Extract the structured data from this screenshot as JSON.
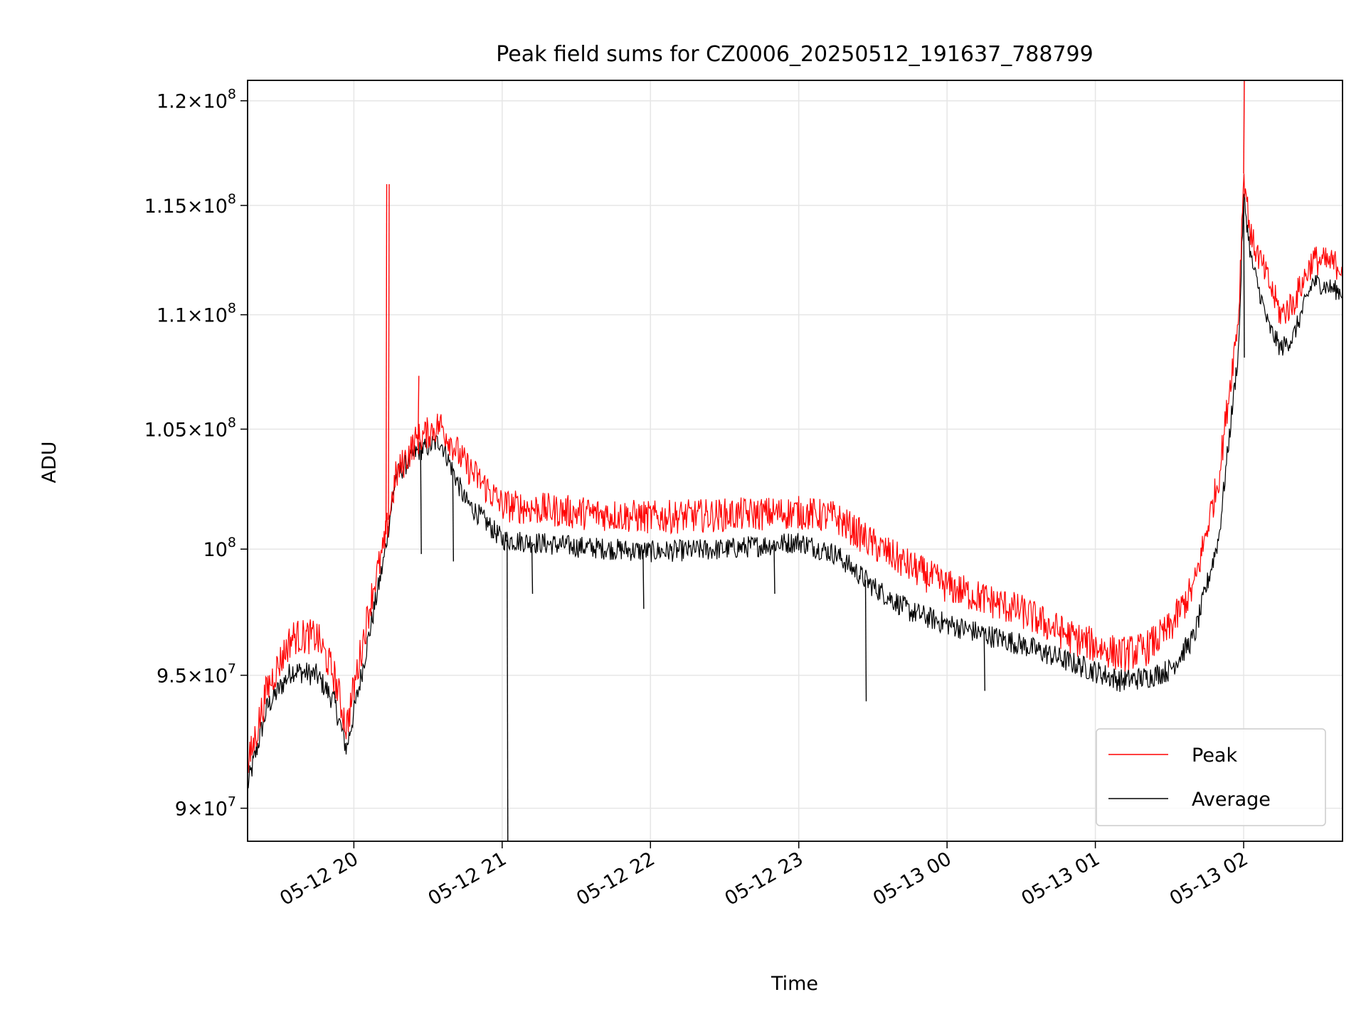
{
  "chart_data": {
    "type": "line",
    "title": "Peak field sums for CZ0006_20250512_191637_788799",
    "xlabel": "Time",
    "ylabel": "ADU",
    "yscale": "log",
    "ylim": [
      88800000,
      121000000
    ],
    "xlim": [
      "2025-05-12T19:17:00",
      "2025-05-13T02:40:00"
    ],
    "x_ticks": [
      {
        "t": "2025-05-12T20:00:00",
        "label": "05-12 20"
      },
      {
        "t": "2025-05-12T21:00:00",
        "label": "05-12 21"
      },
      {
        "t": "2025-05-12T22:00:00",
        "label": "05-12 22"
      },
      {
        "t": "2025-05-12T23:00:00",
        "label": "05-12 23"
      },
      {
        "t": "2025-05-13T00:00:00",
        "label": "05-13 00"
      },
      {
        "t": "2025-05-13T01:00:00",
        "label": "05-13 01"
      },
      {
        "t": "2025-05-13T02:00:00",
        "label": "05-13 02"
      }
    ],
    "y_ticks": [
      {
        "v": 90000000,
        "mant": "9",
        "exp": "7"
      },
      {
        "v": 95000000,
        "mant": "9.5",
        "exp": "7"
      },
      {
        "v": 100000000,
        "mant": "",
        "exp": "8"
      },
      {
        "v": 105000000,
        "mant": "1.05",
        "exp": "8"
      },
      {
        "v": 110000000,
        "mant": "1.1",
        "exp": "8"
      },
      {
        "v": 115000000,
        "mant": "1.15",
        "exp": "8"
      },
      {
        "v": 120000000,
        "mant": "1.2",
        "exp": "8"
      }
    ],
    "grid": true,
    "legend_position": "lower-right",
    "series": [
      {
        "name": "Peak",
        "color": "#ff0000",
        "noise": 700000,
        "x": [
          "2025-05-12T19:17:00",
          "2025-05-12T19:25:00",
          "2025-05-12T19:35:00",
          "2025-05-12T19:45:00",
          "2025-05-12T19:52:00",
          "2025-05-12T19:57:00",
          "2025-05-12T20:02:00",
          "2025-05-12T20:08:00",
          "2025-05-12T20:12:00",
          "2025-05-12T20:17:00",
          "2025-05-12T20:25:00",
          "2025-05-12T20:35:00",
          "2025-05-12T20:45:00",
          "2025-05-12T21:00:00",
          "2025-05-12T21:30:00",
          "2025-05-12T22:00:00",
          "2025-05-12T22:30:00",
          "2025-05-12T23:00:00",
          "2025-05-12T23:15:00",
          "2025-05-12T23:30:00",
          "2025-05-12T23:45:00",
          "2025-05-13T00:00:00",
          "2025-05-13T00:30:00",
          "2025-05-13T00:50:00",
          "2025-05-13T01:10:00",
          "2025-05-13T01:20:00",
          "2025-05-13T01:30:00",
          "2025-05-13T01:40:00",
          "2025-05-13T01:50:00",
          "2025-05-13T01:58:00",
          "2025-05-13T02:00:00",
          "2025-05-13T02:03:00",
          "2025-05-13T02:10:00",
          "2025-05-13T02:15:00",
          "2025-05-13T02:20:00",
          "2025-05-13T02:28:00",
          "2025-05-13T02:40:00"
        ],
        "y": [
          91500000,
          94500000,
          96500000,
          96500000,
          95000000,
          93000000,
          95500000,
          98500000,
          100000000,
          103000000,
          104500000,
          105200000,
          103500000,
          101800000,
          101500000,
          101300000,
          101400000,
          101500000,
          101300000,
          100200000,
          99300000,
          98500000,
          97500000,
          96500000,
          95800000,
          96000000,
          96800000,
          98500000,
          103000000,
          110000000,
          116500000,
          113500000,
          111500000,
          110000000,
          110500000,
          112500000,
          112200000
        ]
      },
      {
        "name": "Average",
        "color": "#000000",
        "noise": 450000,
        "x": [
          "2025-05-12T19:17:00",
          "2025-05-12T19:25:00",
          "2025-05-12T19:35:00",
          "2025-05-12T19:45:00",
          "2025-05-12T19:52:00",
          "2025-05-12T19:57:00",
          "2025-05-12T20:02:00",
          "2025-05-12T20:08:00",
          "2025-05-12T20:12:00",
          "2025-05-12T20:17:00",
          "2025-05-12T20:25:00",
          "2025-05-12T20:35:00",
          "2025-05-12T20:45:00",
          "2025-05-12T21:00:00",
          "2025-05-12T21:30:00",
          "2025-05-12T22:00:00",
          "2025-05-12T22:30:00",
          "2025-05-12T23:00:00",
          "2025-05-12T23:15:00",
          "2025-05-12T23:30:00",
          "2025-05-12T23:45:00",
          "2025-05-13T00:00:00",
          "2025-05-13T00:30:00",
          "2025-05-13T00:50:00",
          "2025-05-13T01:10:00",
          "2025-05-13T01:20:00",
          "2025-05-13T01:30:00",
          "2025-05-13T01:40:00",
          "2025-05-13T01:50:00",
          "2025-05-13T01:58:00",
          "2025-05-13T02:00:00",
          "2025-05-13T02:03:00",
          "2025-05-13T02:10:00",
          "2025-05-13T02:15:00",
          "2025-05-13T02:20:00",
          "2025-05-13T02:28:00",
          "2025-05-13T02:40:00"
        ],
        "y": [
          90800000,
          93800000,
          95200000,
          95000000,
          94000000,
          92200000,
          94500000,
          97500000,
          99500000,
          103000000,
          104000000,
          104500000,
          102000000,
          100400000,
          100100000,
          99900000,
          100000000,
          100300000,
          99800000,
          98500000,
          97500000,
          97000000,
          96200000,
          95500000,
          94800000,
          94900000,
          95200000,
          96500000,
          100500000,
          108500000,
          115500000,
          112500000,
          109500000,
          108500000,
          109000000,
          111500000,
          111000000
        ]
      }
    ],
    "spikes": [
      {
        "series": "Peak",
        "t": "2025-05-12T20:13:00",
        "y": 116000000
      },
      {
        "series": "Peak",
        "t": "2025-05-12T20:14:00",
        "y": 116000000
      },
      {
        "series": "Peak",
        "t": "2025-05-12T20:26:00",
        "y": 107300000
      },
      {
        "series": "Peak",
        "t": "2025-05-13T02:00:00",
        "y": 121000000
      },
      {
        "series": "Average",
        "t": "2025-05-12T21:02:00",
        "y": 88800000
      },
      {
        "series": "Average",
        "t": "2025-05-12T20:27:00",
        "y": 99800000
      },
      {
        "series": "Average",
        "t": "2025-05-12T20:40:00",
        "y": 99500000
      },
      {
        "series": "Average",
        "t": "2025-05-12T21:12:00",
        "y": 98200000
      },
      {
        "series": "Average",
        "t": "2025-05-12T21:57:00",
        "y": 97600000
      },
      {
        "series": "Average",
        "t": "2025-05-12T22:50:00",
        "y": 98200000
      },
      {
        "series": "Average",
        "t": "2025-05-12T23:27:00",
        "y": 94000000
      },
      {
        "series": "Average",
        "t": "2025-05-13T00:15:00",
        "y": 94400000
      },
      {
        "series": "Average",
        "t": "2025-05-13T02:00:00",
        "y": 108100000
      }
    ]
  }
}
